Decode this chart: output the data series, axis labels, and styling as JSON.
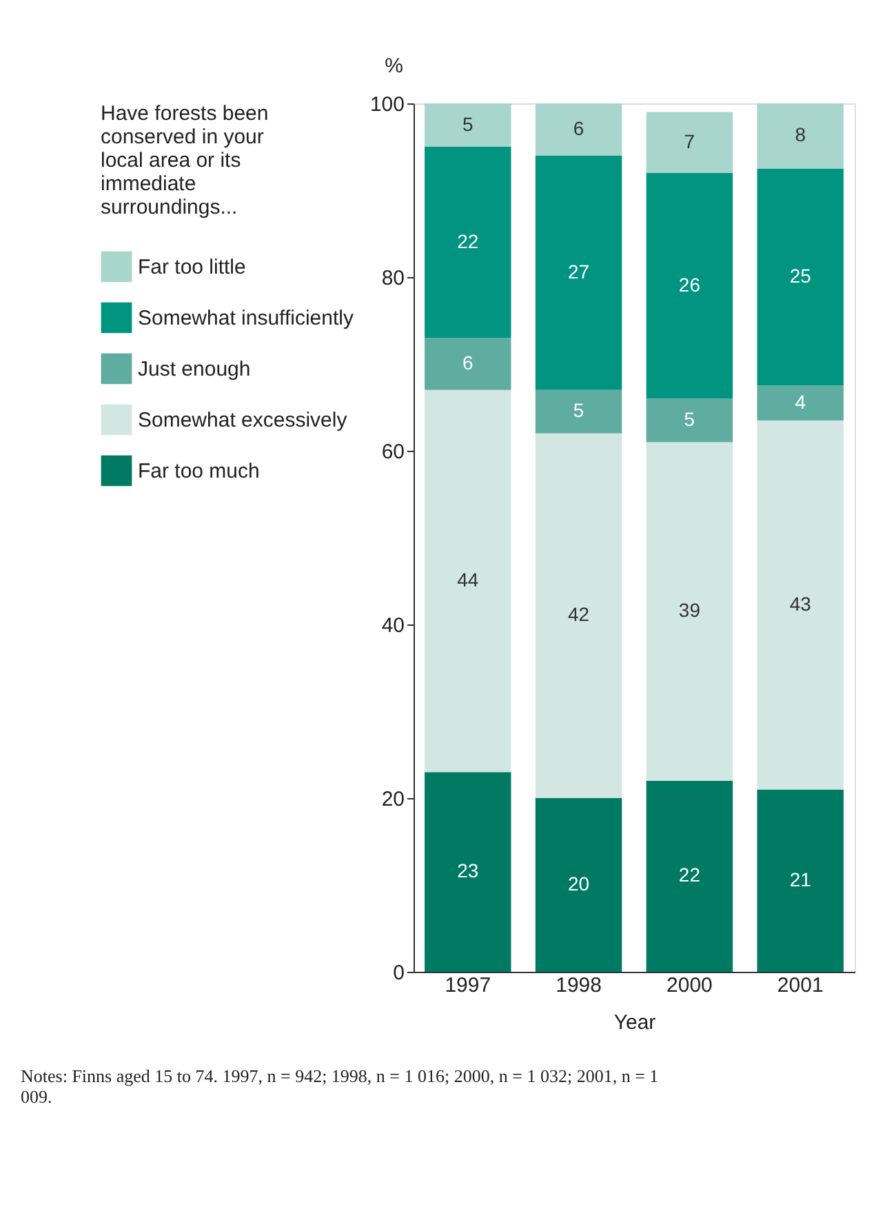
{
  "chart_data": {
    "type": "bar",
    "stacked": true,
    "categories": [
      "1997",
      "1998",
      "2000",
      "2001"
    ],
    "series": [
      {
        "name": "Far too much",
        "color": "#007a63",
        "values": [
          23,
          20,
          22,
          21
        ]
      },
      {
        "name": "Somewhat excessively",
        "color": "#d2e6e2",
        "values": [
          44,
          42,
          39,
          42.5
        ],
        "value_labels": [
          "44",
          "42",
          "39",
          "43"
        ]
      },
      {
        "name": "Just enough",
        "color": "#5fada0",
        "values": [
          6,
          5,
          5,
          4
        ]
      },
      {
        "name": "Somewhat insufficiently",
        "color": "#009481",
        "values": [
          22,
          27,
          26,
          25
        ]
      },
      {
        "name": "Far too little",
        "color": "#a8d5cc",
        "values": [
          5,
          6,
          7,
          7.5
        ],
        "value_labels": [
          "5",
          "6",
          "7",
          "8"
        ]
      }
    ],
    "legend_title": "Have forests been conserved in your local area or its immediate surroundings...",
    "legend": "left",
    "xlabel": "Year",
    "ylabel": "%",
    "ylim": [
      0,
      100
    ],
    "yticks": [
      0,
      20,
      40,
      60,
      80,
      100
    ],
    "grid": false,
    "data_labels": true,
    "annotations": [
      "Notes: Finns aged 15 to 74. 1997, n = 942; 1998, n = 1 016; 2000, n = 1 032; 2001, n = 1 009."
    ]
  }
}
